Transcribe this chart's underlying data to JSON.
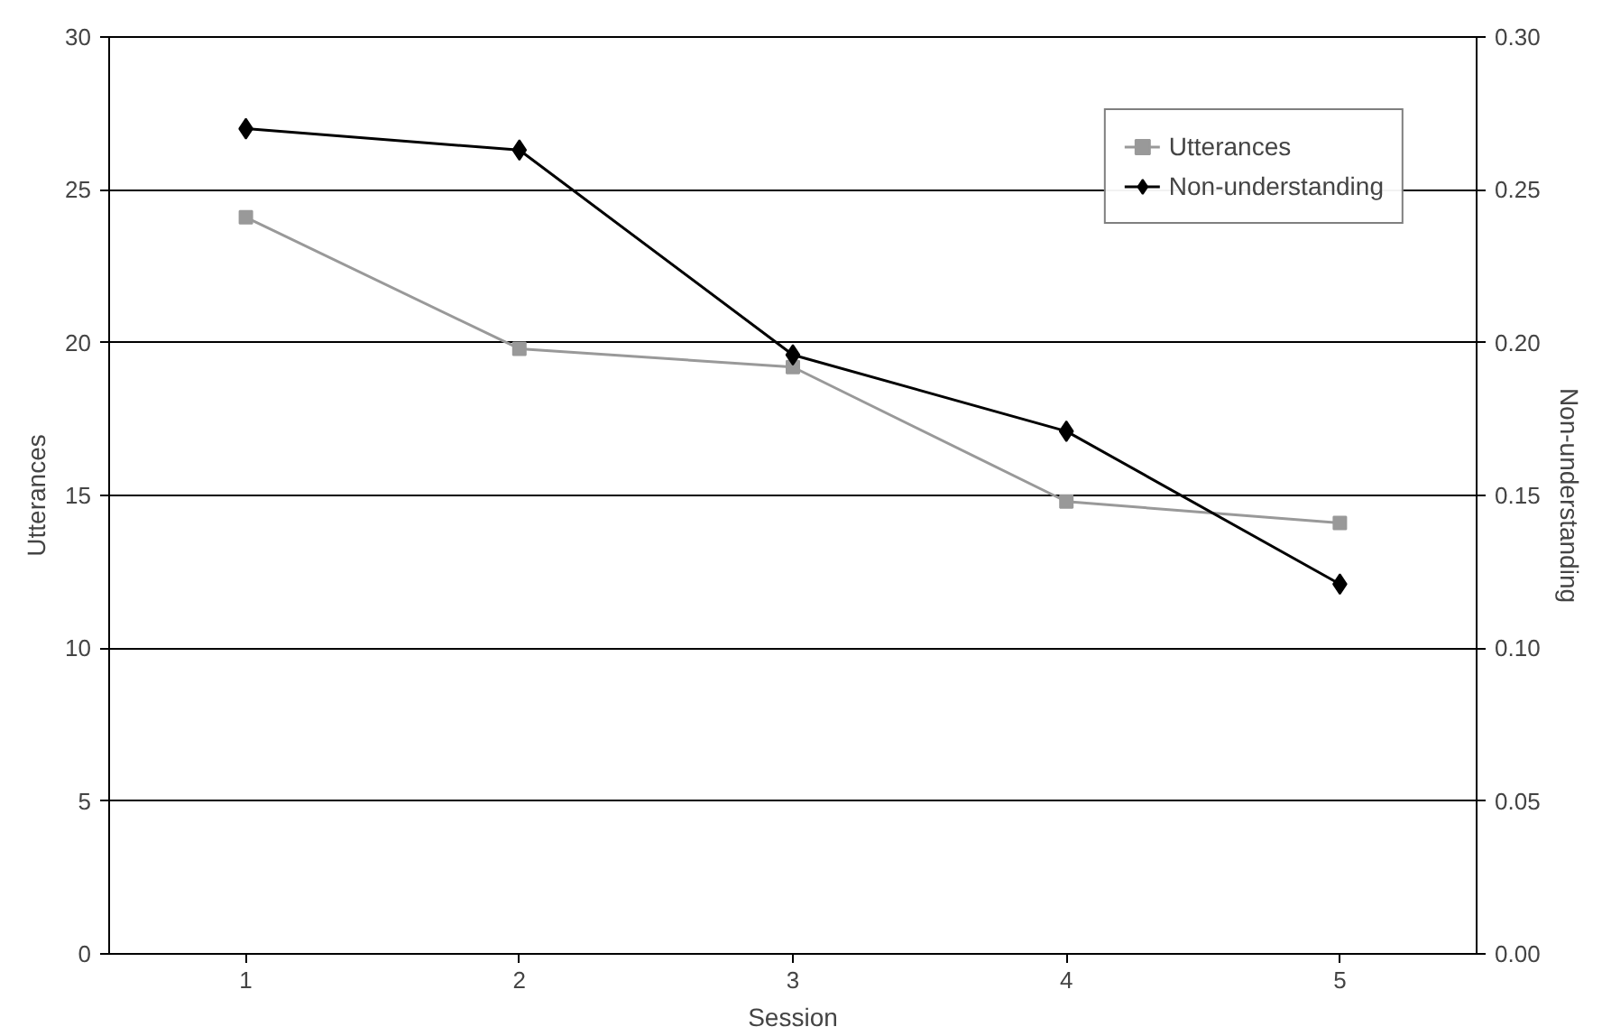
{
  "chart_data": {
    "type": "line",
    "xlabel": "Session",
    "ylabel": "Utterances",
    "y2label": "Non-understanding",
    "categories": [
      "1",
      "2",
      "3",
      "4",
      "5"
    ],
    "series": [
      {
        "name": "Utterances",
        "color": "#999999",
        "marker": "square",
        "values": [
          24.1,
          19.8,
          19.2,
          14.8,
          14.1
        ]
      },
      {
        "name": "Non-understanding",
        "color": "#000000",
        "marker": "diamond",
        "axis": "y2",
        "values": [
          0.27,
          0.263,
          0.196,
          0.171,
          0.121
        ]
      }
    ],
    "ylim": [
      0,
      30
    ],
    "yticks": [
      0,
      5,
      10,
      15,
      20,
      25,
      30
    ],
    "y2lim": [
      0,
      0.3
    ],
    "y2ticks": [
      {
        "value": 0,
        "label": "0.00"
      },
      {
        "value": 0.05,
        "label": "0.05"
      },
      {
        "value": 0.1,
        "label": "0.10"
      },
      {
        "value": 0.15,
        "label": "0.15"
      },
      {
        "value": 0.2,
        "label": "0.20"
      },
      {
        "value": 0.25,
        "label": "0.25"
      },
      {
        "value": 0.3,
        "label": "0.30"
      }
    ],
    "grid": "y",
    "legend": "top right"
  }
}
